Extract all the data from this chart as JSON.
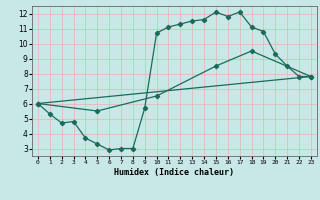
{
  "line1_x": [
    0,
    1,
    2,
    3,
    4,
    5,
    6,
    7,
    8,
    9,
    10,
    11,
    12,
    13,
    14,
    15,
    16,
    17,
    18,
    19,
    20,
    21,
    22,
    23
  ],
  "line1_y": [
    6.0,
    5.3,
    4.7,
    4.8,
    3.7,
    3.3,
    2.9,
    3.0,
    3.0,
    5.7,
    10.7,
    11.1,
    11.3,
    11.5,
    11.6,
    12.1,
    11.8,
    12.1,
    11.1,
    10.8,
    9.3,
    8.5,
    7.8,
    7.8
  ],
  "line2_x": [
    0,
    5,
    10,
    15,
    18,
    23
  ],
  "line2_y": [
    6.0,
    5.5,
    6.5,
    8.5,
    9.5,
    7.8
  ],
  "line3_x": [
    0,
    23
  ],
  "line3_y": [
    6.0,
    7.8
  ],
  "color": "#1a6b5a",
  "bg_color": "#c8e8e8",
  "grid_color": "#e8b0b0",
  "xlabel": "Humidex (Indice chaleur)",
  "xlim": [
    -0.5,
    23.5
  ],
  "ylim": [
    2.5,
    12.5
  ],
  "yticks": [
    3,
    4,
    5,
    6,
    7,
    8,
    9,
    10,
    11,
    12
  ],
  "xticks": [
    0,
    1,
    2,
    3,
    4,
    5,
    6,
    7,
    8,
    9,
    10,
    11,
    12,
    13,
    14,
    15,
    16,
    17,
    18,
    19,
    20,
    21,
    22,
    23
  ],
  "marker": "D",
  "markersize": 2.2,
  "linewidth": 0.9
}
